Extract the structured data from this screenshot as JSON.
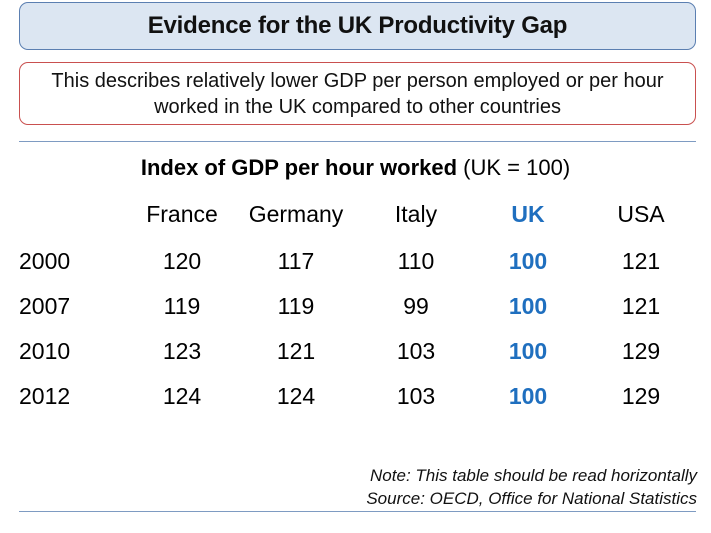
{
  "title": "Evidence for the UK Productivity Gap",
  "description": "This describes relatively lower GDP per person employed or per hour worked in the UK compared to other countries",
  "table": {
    "heading_bold": "Index of GDP per hour worked",
    "heading_suffix": " (UK = 100)",
    "columns": [
      "France",
      "Germany",
      "Italy",
      "UK",
      "USA"
    ],
    "highlight_color": "#1f6fbf",
    "rows": [
      {
        "year": "2000",
        "values": [
          "120",
          "117",
          "110",
          "100",
          "121"
        ]
      },
      {
        "year": "2007",
        "values": [
          "119",
          "119",
          "99",
          "100",
          "121"
        ]
      },
      {
        "year": "2010",
        "values": [
          "123",
          "121",
          "103",
          "100",
          "129"
        ]
      },
      {
        "year": "2012",
        "values": [
          "124",
          "124",
          "103",
          "100",
          "129"
        ]
      }
    ]
  },
  "notes": {
    "note": "Note: This table should be read horizontally",
    "source": "Source: OECD, Office for National Statistics"
  }
}
